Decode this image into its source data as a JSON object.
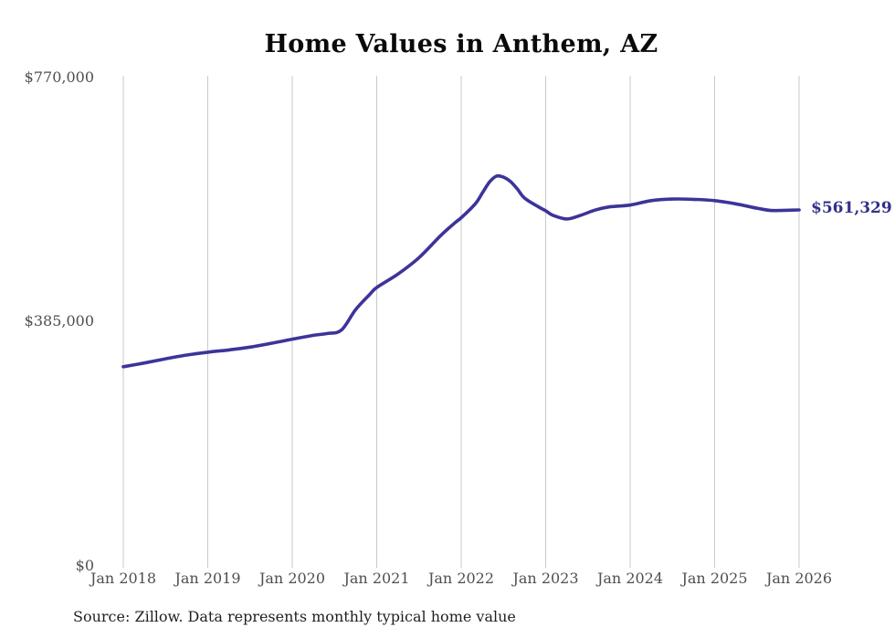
{
  "title": "Home Values in Anthem, AZ",
  "source": "Source: Zillow. Data represents monthly typical home value",
  "colors": {
    "line": "#3c3499",
    "end_label": "#353089",
    "gridline": "#c9c9c9",
    "axis_text": "#4f4f4f",
    "title_text": "#0a0a0a",
    "source_text": "#1f1f1f",
    "background": "#ffffff"
  },
  "chart_data": {
    "type": "line",
    "title": "Home Values in Anthem, AZ",
    "x_tick_labels": [
      "Jan 2018",
      "Jan 2019",
      "Jan 2020",
      "Jan 2021",
      "Jan 2022",
      "Jan 2023",
      "Jan 2024",
      "Jan 2025",
      "Jan 2026"
    ],
    "y_tick_labels": [
      "$0",
      "$385,000",
      "$770,000"
    ],
    "ylim": [
      0,
      770000
    ],
    "x_range_years": [
      2018,
      2026
    ],
    "grid": "vertical-only",
    "legend": "none",
    "end_label": "$561,329",
    "end_value": 561329,
    "series": [
      {
        "name": "typical-home-value",
        "points": [
          [
            "2018-01",
            314000
          ],
          [
            "2018-04",
            320000
          ],
          [
            "2018-07",
            326500
          ],
          [
            "2018-10",
            332500
          ],
          [
            "2019-01",
            337000
          ],
          [
            "2019-04",
            340500
          ],
          [
            "2019-07",
            345000
          ],
          [
            "2019-10",
            351000
          ],
          [
            "2020-01",
            357500
          ],
          [
            "2020-04",
            363500
          ],
          [
            "2020-06",
            366500
          ],
          [
            "2020-08",
            372000
          ],
          [
            "2020-10",
            404000
          ],
          [
            "2020-12",
            428000
          ],
          [
            "2021-01",
            439000
          ],
          [
            "2021-04",
            460000
          ],
          [
            "2021-07",
            486000
          ],
          [
            "2021-10",
            520000
          ],
          [
            "2021-12",
            540000
          ],
          [
            "2022-01",
            549000
          ],
          [
            "2022-03",
            571000
          ],
          [
            "2022-04",
            588000
          ],
          [
            "2022-05",
            605000
          ],
          [
            "2022-06",
            614500
          ],
          [
            "2022-07",
            613000
          ],
          [
            "2022-08",
            606000
          ],
          [
            "2022-09",
            594000
          ],
          [
            "2022-10",
            580000
          ],
          [
            "2022-12",
            566000
          ],
          [
            "2023-01",
            560000
          ],
          [
            "2023-02",
            553000
          ],
          [
            "2023-04",
            547000
          ],
          [
            "2023-06",
            553000
          ],
          [
            "2023-08",
            561000
          ],
          [
            "2023-10",
            566000
          ],
          [
            "2024-01",
            569000
          ],
          [
            "2024-04",
            576000
          ],
          [
            "2024-07",
            578500
          ],
          [
            "2024-10",
            578000
          ],
          [
            "2025-01",
            576000
          ],
          [
            "2025-04",
            571000
          ],
          [
            "2025-07",
            564000
          ],
          [
            "2025-09",
            560500
          ],
          [
            "2025-11",
            560800
          ],
          [
            "2026-01",
            561329
          ]
        ]
      }
    ]
  }
}
